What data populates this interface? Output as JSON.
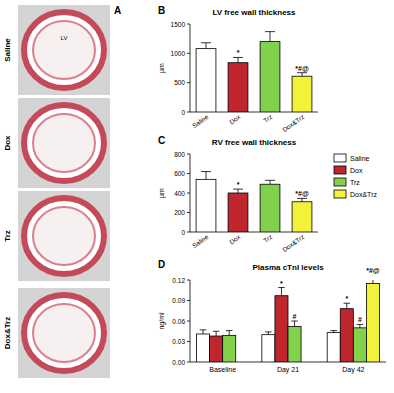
{
  "image_panel": {
    "label": "A",
    "rows": [
      "Saline",
      "Dox",
      "Trz",
      "Dox&Trz"
    ],
    "annotation": "LV"
  },
  "chart_data": [
    {
      "type": "bar",
      "panel": "B",
      "title": "LV free wall thickness",
      "y_label": "µm",
      "categories": [
        "Saline",
        "Dox",
        "Trz",
        "Dox&Trz"
      ],
      "values": [
        1080,
        840,
        1200,
        610
      ],
      "error": [
        100,
        90,
        170,
        60
      ],
      "annotations": [
        null,
        "*",
        null,
        "*#@"
      ],
      "colors": [
        "#ffffff",
        "#c0262d",
        "#82d14c",
        "#f3f23a"
      ],
      "ylim": [
        0,
        1500
      ],
      "yticks": [
        0,
        500,
        1000,
        1500
      ]
    },
    {
      "type": "bar",
      "panel": "C",
      "title": "RV free wall thickness",
      "y_label": "µm",
      "categories": [
        "Saline",
        "Dox",
        "Trz",
        "Dox&Trz"
      ],
      "values": [
        540,
        400,
        490,
        310
      ],
      "error": [
        80,
        40,
        40,
        35
      ],
      "annotations": [
        null,
        "*",
        null,
        "*#@"
      ],
      "colors": [
        "#ffffff",
        "#c0262d",
        "#82d14c",
        "#f3f23a"
      ],
      "ylim": [
        0,
        800
      ],
      "yticks": [
        0,
        200,
        400,
        600,
        800
      ]
    },
    {
      "type": "bar",
      "panel": "D",
      "title": "Plasma cTnI levels",
      "y_label": "ng/ml",
      "categories": [
        "Baseline",
        "Day 21",
        "Day 42"
      ],
      "series": [
        {
          "name": "Saline",
          "color": "#ffffff",
          "values": [
            0.041,
            0.04,
            0.043
          ],
          "error": [
            0.006,
            0.004,
            0.003
          ],
          "annotations": [
            null,
            null,
            null
          ]
        },
        {
          "name": "Dox",
          "color": "#c0262d",
          "values": [
            0.038,
            0.097,
            0.078
          ],
          "error": [
            0.007,
            0.012,
            0.008
          ],
          "annotations": [
            null,
            "*",
            "*"
          ]
        },
        {
          "name": "Trz",
          "color": "#82d14c",
          "values": [
            0.039,
            0.052,
            0.05
          ],
          "error": [
            0.007,
            0.008,
            0.005
          ],
          "annotations": [
            null,
            "#",
            "#"
          ]
        },
        {
          "name": "Dox&Trz",
          "color": "#f3f23a",
          "values": [
            null,
            null,
            0.115
          ],
          "error": [
            null,
            null,
            0.012
          ],
          "annotations": [
            null,
            null,
            "*#@"
          ]
        }
      ],
      "ylim": [
        0,
        0.12
      ],
      "yticks": [
        {
          "value": 0,
          "label": "0.00"
        },
        0.03,
        0.06,
        0.09,
        0.12
      ]
    }
  ]
}
